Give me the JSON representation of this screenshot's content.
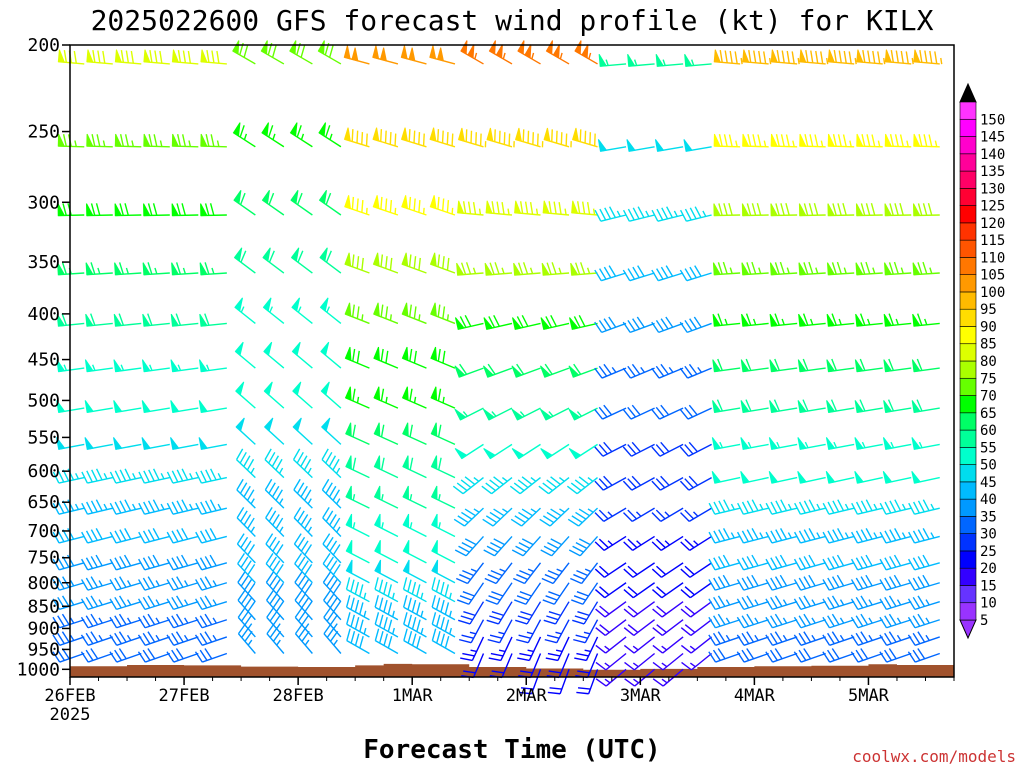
{
  "chart_data": {
    "type": "wind-barb-profile",
    "title": "2025022600 GFS forecast wind profile (kt) for KILX",
    "xlabel": "Forecast Time (UTC)",
    "ylabel": "",
    "credit": "coolwx.com/models",
    "x_ticks": [
      {
        "label": "26FEB",
        "sublabel": "2025",
        "hour": 0
      },
      {
        "label": "27FEB",
        "sublabel": "",
        "hour": 24
      },
      {
        "label": "28FEB",
        "sublabel": "",
        "hour": 48
      },
      {
        "label": "1MAR",
        "sublabel": "",
        "hour": 72
      },
      {
        "label": "2MAR",
        "sublabel": "",
        "hour": 96
      },
      {
        "label": "3MAR",
        "sublabel": "",
        "hour": 120
      },
      {
        "label": "4MAR",
        "sublabel": "",
        "hour": 144
      },
      {
        "label": "5MAR",
        "sublabel": "",
        "hour": 168
      }
    ],
    "xlim_hours": [
      0,
      186
    ],
    "y_ticks": [
      200,
      250,
      300,
      350,
      400,
      450,
      500,
      550,
      600,
      650,
      700,
      750,
      800,
      850,
      900,
      950,
      1000
    ],
    "ylim_hpa": [
      1020,
      200
    ],
    "y_scale": "log-pressure",
    "colorbar": {
      "levels": [
        5,
        10,
        15,
        20,
        25,
        30,
        35,
        40,
        45,
        50,
        55,
        60,
        65,
        70,
        75,
        80,
        85,
        90,
        95,
        100,
        105,
        110,
        115,
        120,
        125,
        130,
        135,
        140,
        145,
        150
      ],
      "colors": [
        "#9933ff",
        "#6633ff",
        "#3300ff",
        "#0000ff",
        "#0033ff",
        "#0066ff",
        "#0099ff",
        "#00bbff",
        "#00ddee",
        "#00ffcc",
        "#00ff99",
        "#00ff66",
        "#00ff00",
        "#66ff00",
        "#aaff00",
        "#ddff00",
        "#ffff00",
        "#ffdd00",
        "#ffbb00",
        "#ff9900",
        "#ff7700",
        "#ff5500",
        "#ff3300",
        "#ff0000",
        "#ff0033",
        "#ff0066",
        "#ff0099",
        "#ff00cc",
        "#ff00ff",
        "#ff33ff"
      ],
      "under_color": "#9933ff",
      "over_color": "#000000"
    },
    "terrain_color": "#a0522d",
    "surface_pressure_hpa": [
      {
        "hour": 0,
        "p": 992
      },
      {
        "hour": 12,
        "p": 989
      },
      {
        "hour": 24,
        "p": 990
      },
      {
        "hour": 36,
        "p": 993
      },
      {
        "hour": 48,
        "p": 994
      },
      {
        "hour": 60,
        "p": 990
      },
      {
        "hour": 66,
        "p": 986
      },
      {
        "hour": 72,
        "p": 987
      },
      {
        "hour": 84,
        "p": 994
      },
      {
        "hour": 96,
        "p": 998
      },
      {
        "hour": 108,
        "p": 1001
      },
      {
        "hour": 120,
        "p": 999
      },
      {
        "hour": 132,
        "p": 994
      },
      {
        "hour": 144,
        "p": 992
      },
      {
        "hour": 156,
        "p": 991
      },
      {
        "hour": 168,
        "p": 987
      },
      {
        "hour": 174,
        "p": 989
      },
      {
        "hour": 186,
        "p": 990
      }
    ],
    "levels_hpa": [
      210,
      260,
      310,
      360,
      410,
      460,
      510,
      560,
      610,
      660,
      710,
      760,
      800,
      840,
      880,
      920,
      960,
      1000
    ],
    "time_step_hours": 6,
    "wind_profiles": [
      {
        "start_hour": 0,
        "end_hour": 36,
        "upper_speed": 80,
        "upper_dir": 275,
        "lower_speed": 30,
        "lower_dir": 250
      },
      {
        "start_hour": 36,
        "end_hour": 60,
        "upper_speed": 70,
        "upper_dir": 300,
        "lower_speed": 35,
        "lower_dir": 320
      },
      {
        "start_hour": 60,
        "end_hour": 84,
        "upper_speed": 100,
        "upper_dir": 285,
        "lower_speed": 40,
        "lower_dir": 300
      },
      {
        "start_hour": 84,
        "end_hour": 112,
        "upper_speed": 105,
        "upper_dir": 300,
        "lower_speed": 20,
        "lower_dir": 200
      },
      {
        "start_hour": 112,
        "end_hour": 140,
        "upper_speed": 55,
        "upper_dir": 265,
        "lower_speed": 15,
        "lower_dir": 230
      },
      {
        "start_hour": 140,
        "end_hour": 186,
        "upper_speed": 95,
        "upper_dir": 275,
        "lower_speed": 30,
        "lower_dir": 250
      }
    ]
  }
}
